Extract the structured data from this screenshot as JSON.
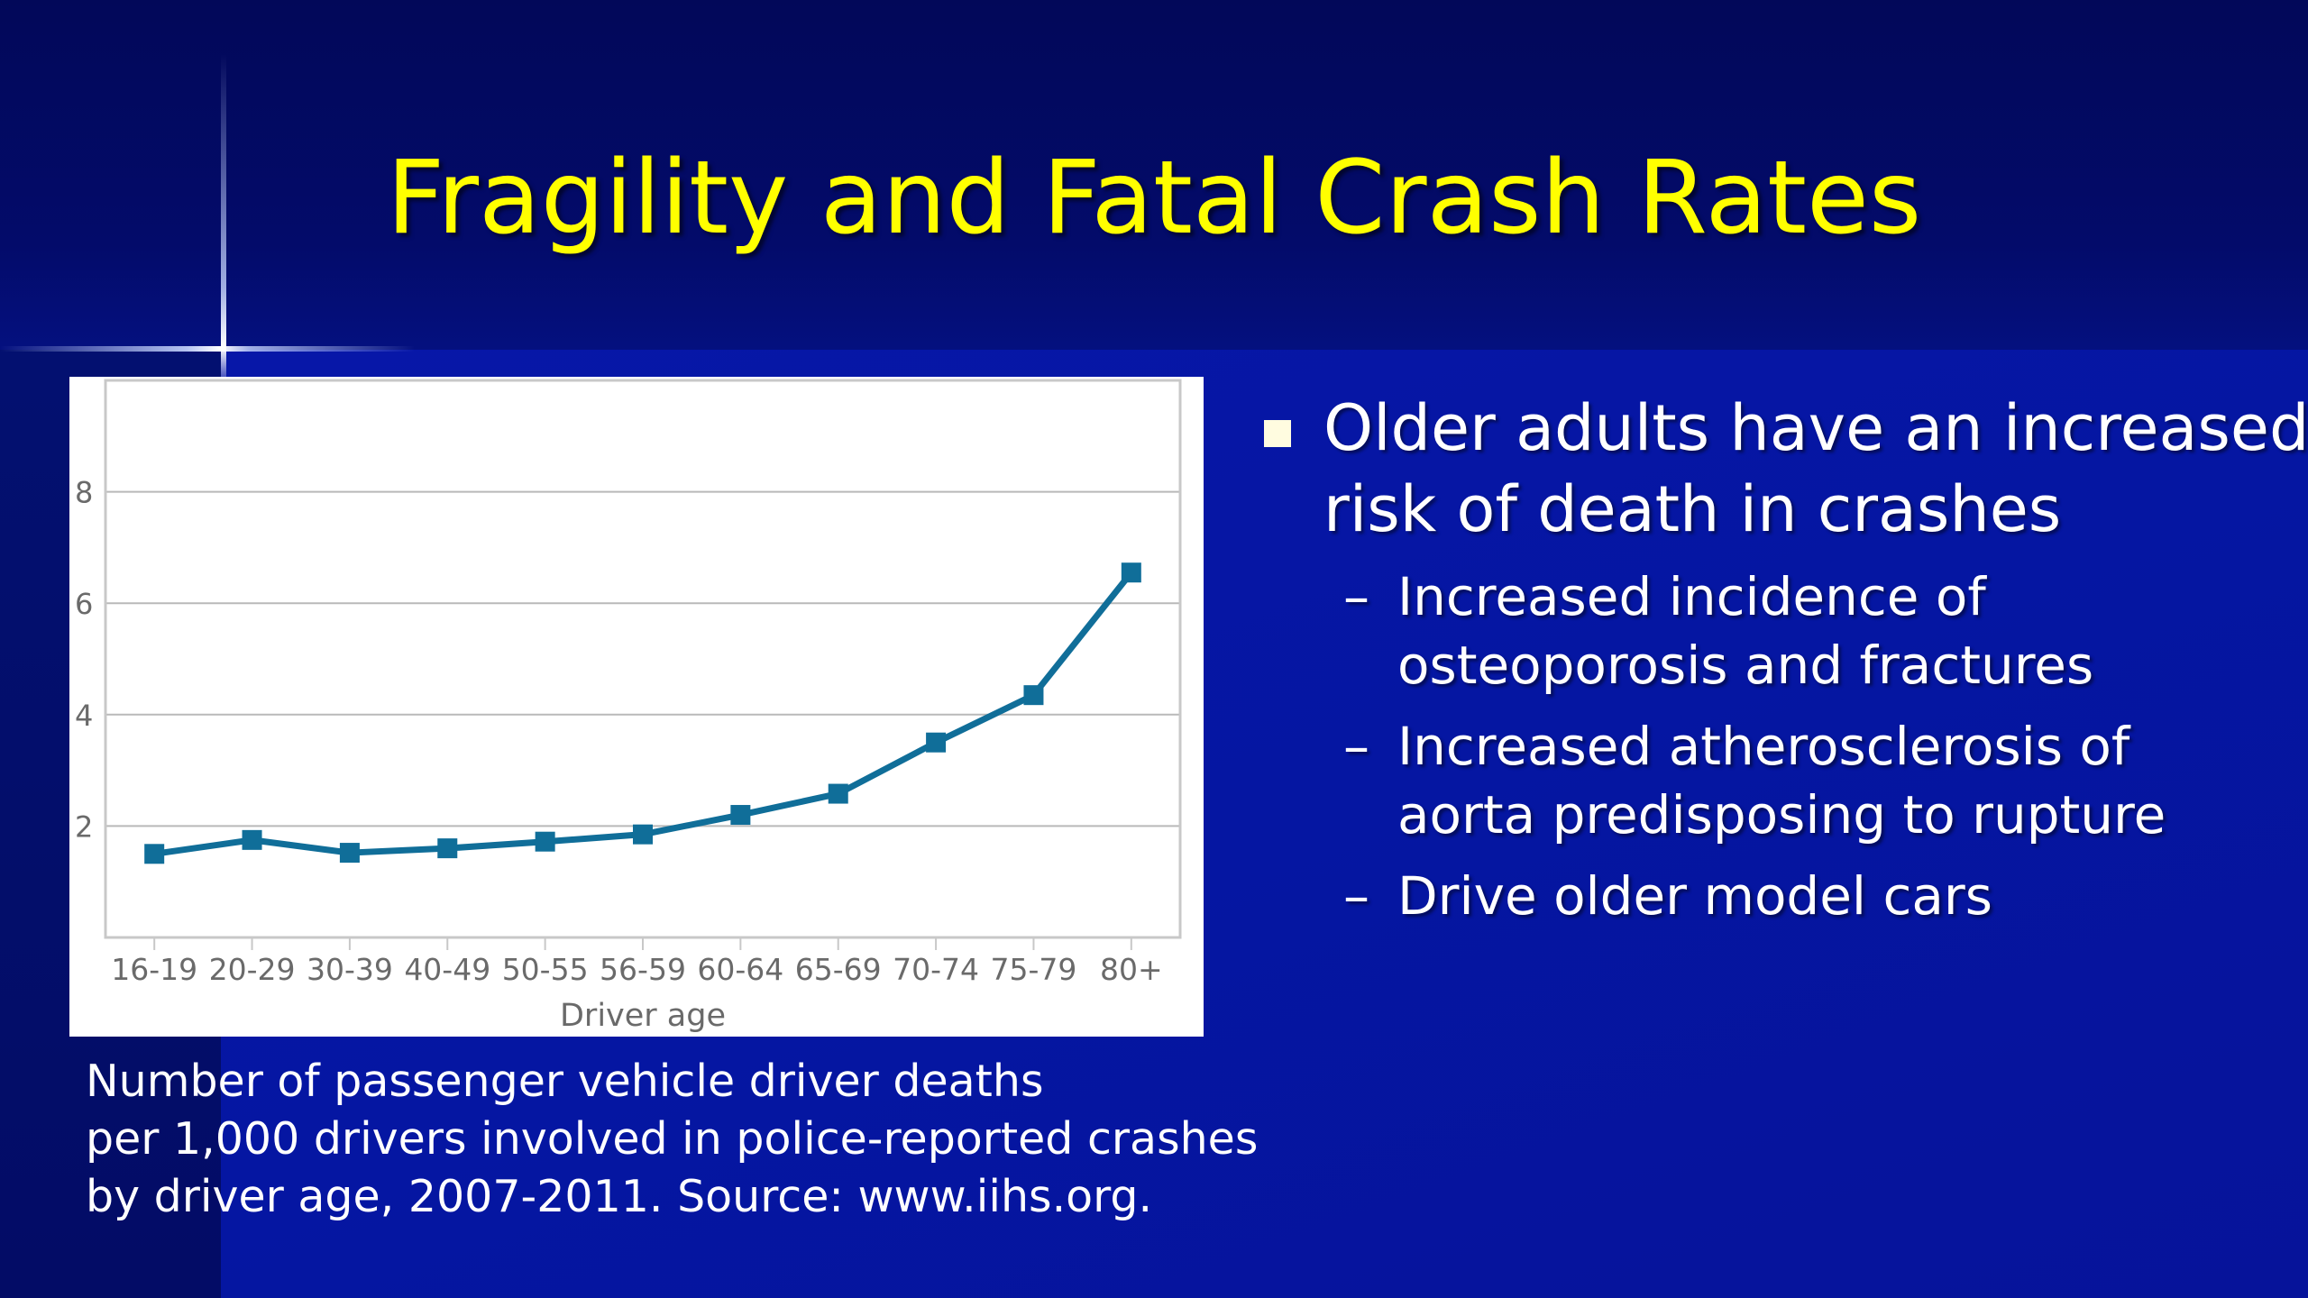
{
  "slide": {
    "title": "Fragility and Fatal Crash Rates",
    "caption_lines": [
      "Number of passenger vehicle driver deaths",
      "per 1,000 drivers involved in police-reported crashes",
      "by driver age, 2007-2011.  Source:  www.iihs.org."
    ],
    "bullet": {
      "lines": [
        "Older adults have an increased",
        "risk of death in crashes"
      ],
      "subs": [
        {
          "dash": "–",
          "lines": [
            "Increased incidence of",
            "osteoporosis and fractures"
          ]
        },
        {
          "dash": "–",
          "lines": [
            "Increased atherosclerosis of",
            "aorta predisposing to rupture"
          ]
        },
        {
          "dash": "–",
          "lines": [
            "Drive older model cars"
          ]
        }
      ]
    }
  },
  "chart_data": {
    "type": "line",
    "categories": [
      "16-19",
      "20-29",
      "30-39",
      "40-49",
      "50-55",
      "56-59",
      "60-64",
      "65-69",
      "70-74",
      "75-79",
      "80+"
    ],
    "series": [
      {
        "values": [
          1.5,
          1.75,
          1.52,
          1.6,
          1.72,
          1.85,
          2.2,
          2.58,
          3.5,
          4.35,
          6.55
        ]
      }
    ],
    "xlabel": "Driver age",
    "ylabel": "",
    "ylim": [
      0,
      10
    ],
    "yticks": [
      2,
      4,
      6,
      8
    ],
    "grid": true,
    "line_color": "#106e99"
  }
}
